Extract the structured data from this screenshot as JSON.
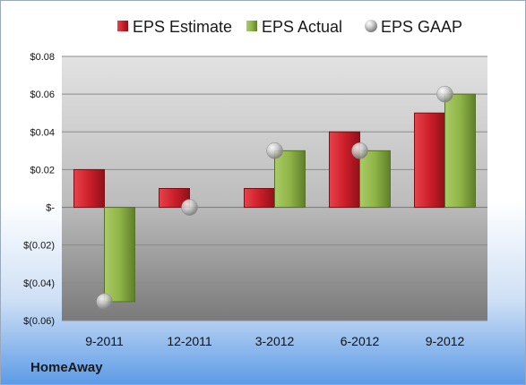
{
  "chart_data": {
    "type": "bar",
    "categories": [
      "9-2011",
      "12-2011",
      "3-2012",
      "6-2012",
      "9-2012"
    ],
    "series": [
      {
        "name": "EPS Estimate",
        "kind": "bar",
        "color": "#cc1f2a",
        "values": [
          0.02,
          0.01,
          0.01,
          0.04,
          0.05
        ]
      },
      {
        "name": "EPS Actual",
        "kind": "bar",
        "color": "#8fb447",
        "values": [
          -0.05,
          null,
          0.03,
          0.03,
          0.06
        ]
      },
      {
        "name": "EPS GAAP",
        "kind": "marker",
        "color": "#b8b8b8",
        "values": [
          -0.05,
          0.0,
          0.03,
          0.03,
          0.06
        ]
      }
    ],
    "ylim": [
      -0.06,
      0.08
    ],
    "yticks": [
      {
        "value": 0.08,
        "label": "$0.08"
      },
      {
        "value": 0.06,
        "label": "$0.06"
      },
      {
        "value": 0.04,
        "label": "$0.04"
      },
      {
        "value": 0.02,
        "label": "$0.02"
      },
      {
        "value": 0.0,
        "label": "$-"
      },
      {
        "value": -0.02,
        "label": "$(0.02)"
      },
      {
        "value": -0.04,
        "label": "$(0.04)"
      },
      {
        "value": -0.06,
        "label": "$(0.06)"
      }
    ],
    "grid": true,
    "legend_position": "top"
  },
  "footer": {
    "company": "HomeAway"
  }
}
